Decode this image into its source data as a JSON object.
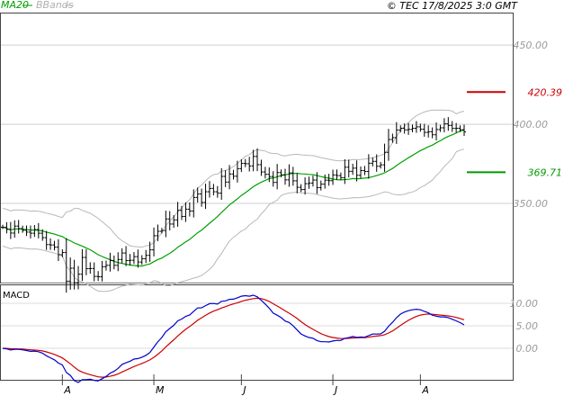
{
  "header": {
    "legend": [
      {
        "name": "MA20",
        "color": "#00a000"
      },
      {
        "name": "BBands",
        "color": "#b0b0b0"
      }
    ],
    "copyright": "© TEC 17/8/2025 3:0 GMT"
  },
  "chart_data": [
    {
      "type": "ohlc",
      "panel": "price",
      "title": "",
      "x_axis_ticks": [
        "A",
        "M",
        "J",
        "J",
        "A"
      ],
      "y_axis_ticks": [
        "450.00",
        "400.00",
        "350.00"
      ],
      "y_range": [
        300,
        470
      ],
      "markers": [
        {
          "label": "420.39",
          "value": 420.39,
          "color": "#cc0000"
        },
        {
          "label": "369.71",
          "value": 369.71,
          "color": "#009900"
        }
      ],
      "closes": [
        335.0,
        333.6,
        331.3,
        335.7,
        334.1,
        333.0,
        331.9,
        331.2,
        333.5,
        331.2,
        328.4,
        324.0,
        323.8,
        322.4,
        317.6,
        319.0,
        300.9,
        309.1,
        299.9,
        305.3,
        315.9,
        308.8,
        308.9,
        303.9,
        303.7,
        310.0,
        310.9,
        313.9,
        310.9,
        314.6,
        318.7,
        313.9,
        314.1,
        316.4,
        313.0,
        315.1,
        317.2,
        320.7,
        329.6,
        332.4,
        332.9,
        340.2,
        337.0,
        339.6,
        345.6,
        341.8,
        346.4,
        345.2,
        353.8,
        356.0,
        350.6,
        357.4,
        359.5,
        357.4,
        356.5,
        367.1,
        363.5,
        368.6,
        367.2,
        372.0,
        375.3,
        375.1,
        373.7,
        379.7,
        374.5,
        369.9,
        368.4,
        367.0,
        363.3,
        369.5,
        368.1,
        364.9,
        369.3,
        364.3,
        360.2,
        358.8,
        362.5,
        362.9,
        364.8,
        360.0,
        362.2,
        364.7,
        364.4,
        368.0,
        367.6,
        366.3,
        372.9,
        370.3,
        372.3,
        367.8,
        370.8,
        370.2,
        375.4,
        376.6,
        373.5,
        374.4,
        382.3,
        390.4,
        391.6,
        396.4,
        397.5,
        396.5,
        396.8,
        397.5,
        398.4,
        396.9,
        394.9,
        395.3,
        393.4,
        396.7,
        397.8,
        400.3,
        399.3,
        397.4,
        397.5,
        396.6,
        395.2
      ],
      "series": [
        {
          "name": "MA20",
          "color": "#00a000"
        },
        {
          "name": "BBands",
          "color": "#b0b0b0"
        }
      ]
    },
    {
      "type": "line",
      "panel": "indicator",
      "title": "MACD",
      "y_axis_ticks": [
        "10.00",
        "5.00",
        "0.00"
      ],
      "y_range": [
        -7,
        14
      ],
      "series": [
        {
          "name": "MACD",
          "color": "#0000cc"
        },
        {
          "name": "Signal",
          "color": "#cc0000"
        }
      ]
    }
  ]
}
